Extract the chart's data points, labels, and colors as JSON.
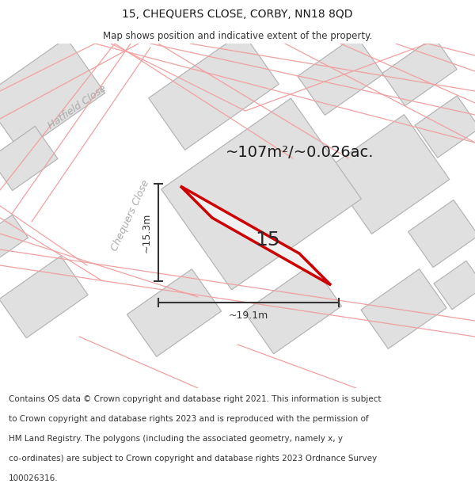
{
  "title": "15, CHEQUERS CLOSE, CORBY, NN18 8QD",
  "subtitle": "Map shows position and indicative extent of the property.",
  "footer_lines": [
    "Contains OS data © Crown copyright and database right 2021. This information is subject",
    "to Crown copyright and database rights 2023 and is reproduced with the permission of",
    "HM Land Registry. The polygons (including the associated geometry, namely x, y",
    "co-ordinates) are subject to Crown copyright and database rights 2023 Ordnance Survey",
    "100026316."
  ],
  "area_label": "~107m²/~0.026ac.",
  "dim_width": "~19.1m",
  "dim_height": "~15.3m",
  "property_number": "15",
  "map_bg": "#f7f7f7",
  "plot_fill": "#e8e8e8",
  "plot_edge": "#cc0000",
  "road_color": "#f0a0a0",
  "building_fill": "#e0e0e0",
  "building_edge": "#b0b0b0",
  "title_color": "#1a1a1a",
  "subtitle_color": "#333333",
  "footer_color": "#333333",
  "dim_color": "#333333",
  "street_label_color": "#aaaaaa",
  "hatfield_label": "Hatfield Close",
  "chequers_label": "Chequers Close",
  "title_fontsize": 10,
  "subtitle_fontsize": 8.5,
  "area_fontsize": 14,
  "prop_num_fontsize": 18,
  "dim_fontsize": 9,
  "street_fontsize": 9,
  "footer_fontsize": 7.5
}
